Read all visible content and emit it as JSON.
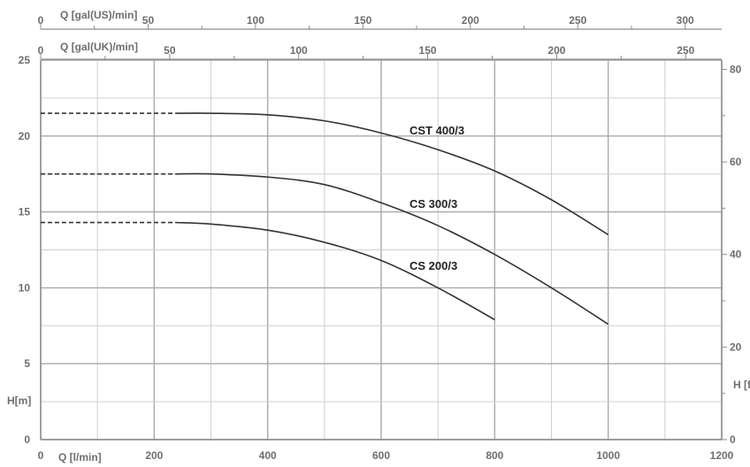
{
  "chart_data": {
    "type": "line",
    "x_label": "Q [l/min]",
    "x_range": [
      0,
      1200
    ],
    "x_ticks": [
      "0",
      "200",
      "400",
      "600",
      "800",
      "1000",
      "1200"
    ],
    "y_left_label": "H[m]",
    "y_left_range": [
      0,
      25
    ],
    "y_left_ticks": [
      "0",
      "5",
      "10",
      "15",
      "20",
      "25"
    ],
    "y_right_label": "H [ft]",
    "y_right_range": [
      0,
      82
    ],
    "y_right_ticks": [
      "0",
      "20",
      "40",
      "60",
      "80"
    ],
    "top_us_label": "Q [gal(US)/min]",
    "top_us_ticks": [
      "0",
      "50",
      "100",
      "150",
      "200",
      "250",
      "300"
    ],
    "top_uk_label": "Q [gal(UK)/min]",
    "top_uk_ticks": [
      "0",
      "50",
      "100",
      "150",
      "200",
      "250"
    ],
    "grid": true,
    "series": [
      {
        "name": "CST 400/3",
        "x": [
          0,
          240,
          300,
          400,
          500,
          600,
          700,
          800,
          900,
          1000
        ],
        "y": [
          21.5,
          21.5,
          21.5,
          21.4,
          21.0,
          20.2,
          19.1,
          17.7,
          15.8,
          13.5
        ],
        "dashed_until": 240
      },
      {
        "name": "CS 300/3",
        "x": [
          0,
          240,
          300,
          400,
          500,
          600,
          700,
          800,
          900,
          1000
        ],
        "y": [
          17.5,
          17.5,
          17.5,
          17.3,
          16.8,
          15.6,
          14.1,
          12.2,
          10.0,
          7.6
        ],
        "dashed_until": 240
      },
      {
        "name": "CS 200/3",
        "x": [
          0,
          240,
          300,
          400,
          500,
          600,
          700,
          800
        ],
        "y": [
          14.3,
          14.3,
          14.2,
          13.8,
          13.0,
          11.8,
          10.0,
          7.9
        ],
        "dashed_until": 240
      }
    ]
  }
}
